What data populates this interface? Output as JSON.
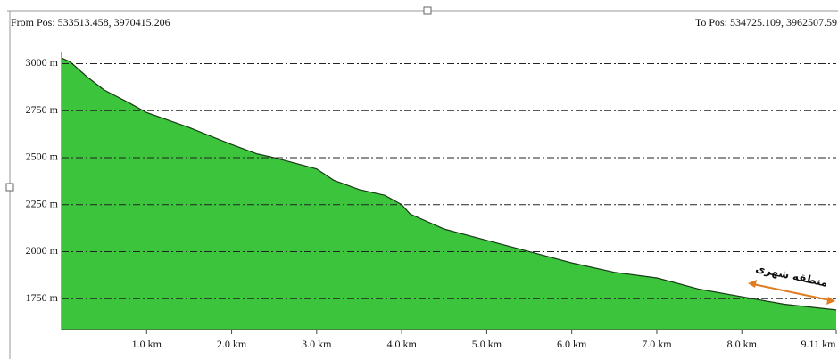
{
  "chart_data": {
    "type": "area",
    "from_label": "From Pos: 533513.458, 3970415.206",
    "to_label": "To Pos: 534725.109, 3962507.59",
    "annotation": "منطقه شهری",
    "x": [
      0,
      0.1,
      0.3,
      0.5,
      0.8,
      1.0,
      1.5,
      2.0,
      2.3,
      2.5,
      3.0,
      3.2,
      3.5,
      3.8,
      4.0,
      4.1,
      4.5,
      5.0,
      5.5,
      6.0,
      6.5,
      7.0,
      7.5,
      8.0,
      8.5,
      9.11
    ],
    "values": [
      3030,
      3010,
      2930,
      2860,
      2790,
      2740,
      2660,
      2570,
      2520,
      2500,
      2440,
      2380,
      2330,
      2300,
      2250,
      2200,
      2120,
      2060,
      2000,
      1940,
      1890,
      1860,
      1800,
      1760,
      1720,
      1690
    ],
    "color": "#3cc43c",
    "xlim": [
      0,
      9.11
    ],
    "ylim": [
      1585,
      3045
    ],
    "xticks": [
      {
        "value": 1,
        "label": "1.0 km"
      },
      {
        "value": 2,
        "label": "2.0 km"
      },
      {
        "value": 3,
        "label": "3.0 km"
      },
      {
        "value": 4,
        "label": "4.0 km"
      },
      {
        "value": 5,
        "label": "5.0 km"
      },
      {
        "value": 6,
        "label": "6.0 km"
      },
      {
        "value": 7,
        "label": "7.0 km"
      },
      {
        "value": 8,
        "label": "8.0 km"
      },
      {
        "value": 9.11,
        "label": "9.11 km"
      }
    ],
    "yticks": [
      {
        "value": 1750,
        "label": "1750 m"
      },
      {
        "value": 2000,
        "label": "2000 m"
      },
      {
        "value": 2250,
        "label": "2250 m"
      },
      {
        "value": 2500,
        "label": "2500 m"
      },
      {
        "value": 2750,
        "label": "2750 m"
      },
      {
        "value": 3000,
        "label": "3000 m"
      }
    ],
    "grid": true
  }
}
